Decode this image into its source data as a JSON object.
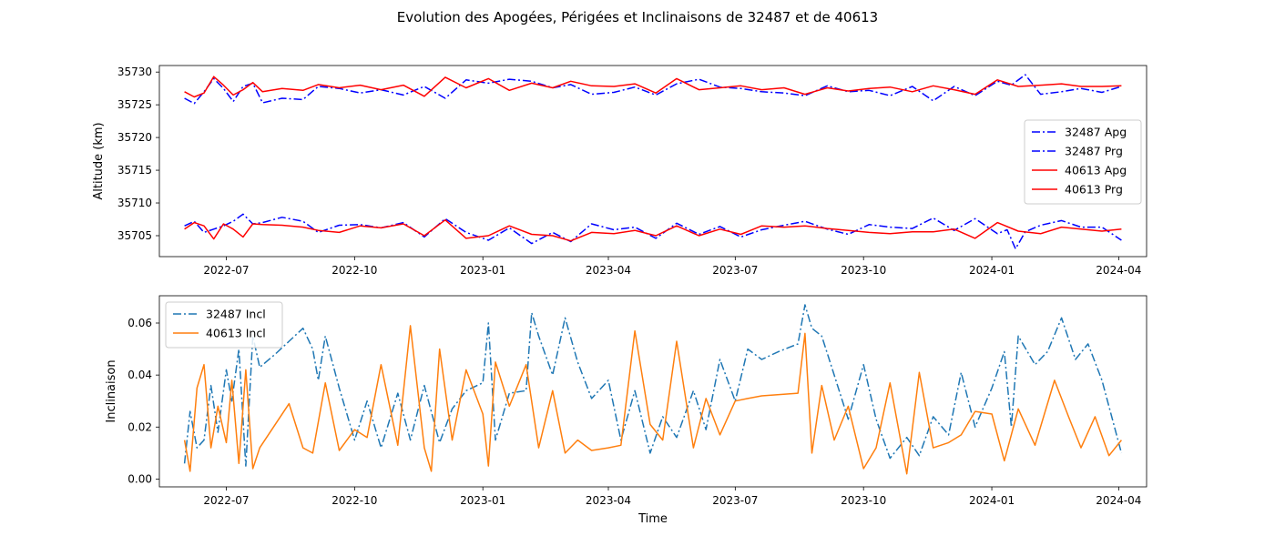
{
  "figure": {
    "title": "Evolution des Apogées, Périgées et Inclinaisons de 32487 et de 40613"
  },
  "chart_data": [
    {
      "type": "line",
      "title": "",
      "xlabel": "",
      "ylabel": "Altitude (km)",
      "xlim": [
        "2022-05-14",
        "2024-04-21"
      ],
      "ylim": [
        35701.8,
        35731.0
      ],
      "x_ticks": [
        "2022-07",
        "2022-10",
        "2023-01",
        "2023-04",
        "2023-07",
        "2023-10",
        "2024-01",
        "2024-04"
      ],
      "y_ticks": [
        35705,
        35710,
        35715,
        35720,
        35725,
        35730
      ],
      "legend": {
        "position": "center-right",
        "entries": [
          {
            "label": "32487 Apg",
            "color": "#0000ff",
            "dash": "dashdot"
          },
          {
            "label": "32487 Prg",
            "color": "#0000ff",
            "dash": "dashdot"
          },
          {
            "label": "40613 Apg",
            "color": "#ff0000",
            "dash": "solid"
          },
          {
            "label": "40613 Prg",
            "color": "#ff0000",
            "dash": "solid"
          }
        ]
      },
      "series": [
        {
          "name": "32487 Apg",
          "color": "#0000ff",
          "dash": "dashdot",
          "x": [
            "2022-06-01",
            "2022-06-08",
            "2022-06-15",
            "2022-06-22",
            "2022-06-29",
            "2022-07-06",
            "2022-07-13",
            "2022-07-20",
            "2022-07-27",
            "2022-08-10",
            "2022-08-25",
            "2022-09-05",
            "2022-09-20",
            "2022-10-05",
            "2022-10-20",
            "2022-11-05",
            "2022-11-20",
            "2022-12-05",
            "2022-12-20",
            "2023-01-05",
            "2023-01-20",
            "2023-02-05",
            "2023-02-20",
            "2023-03-05",
            "2023-03-20",
            "2023-04-05",
            "2023-04-20",
            "2023-05-05",
            "2023-05-20",
            "2023-06-05",
            "2023-06-20",
            "2023-07-05",
            "2023-07-20",
            "2023-08-05",
            "2023-08-20",
            "2023-09-05",
            "2023-09-20",
            "2023-10-05",
            "2023-10-20",
            "2023-11-05",
            "2023-11-20",
            "2023-12-05",
            "2023-12-20",
            "2024-01-05",
            "2024-01-15",
            "2024-01-25",
            "2024-02-05",
            "2024-02-20",
            "2024-03-05",
            "2024-03-20",
            "2024-04-03"
          ],
          "values": [
            35726.0,
            35725.2,
            35727.0,
            35729.0,
            35727.5,
            35725.5,
            35727.8,
            35728.3,
            35725.3,
            35726.0,
            35725.8,
            35727.8,
            35727.5,
            35726.8,
            35727.3,
            35726.5,
            35727.8,
            35726.0,
            35728.8,
            35728.3,
            35728.9,
            35728.6,
            35727.6,
            35728.1,
            35726.6,
            35726.9,
            35727.7,
            35726.5,
            35728.2,
            35728.9,
            35727.7,
            35727.5,
            35727.0,
            35726.8,
            35726.4,
            35727.9,
            35727.0,
            35727.2,
            35726.4,
            35727.8,
            35725.6,
            35727.8,
            35726.4,
            35728.6,
            35728.0,
            35729.6,
            35726.6,
            35727.0,
            35727.5,
            35726.9,
            35727.8
          ]
        },
        {
          "name": "32487 Prg",
          "color": "#0000ff",
          "dash": "dashdot",
          "x": [
            "2022-06-01",
            "2022-06-08",
            "2022-06-15",
            "2022-06-22",
            "2022-06-29",
            "2022-07-06",
            "2022-07-13",
            "2022-07-20",
            "2022-07-27",
            "2022-08-10",
            "2022-08-25",
            "2022-09-05",
            "2022-09-20",
            "2022-10-05",
            "2022-10-20",
            "2022-11-05",
            "2022-11-20",
            "2022-12-05",
            "2022-12-20",
            "2023-01-05",
            "2023-01-20",
            "2023-02-05",
            "2023-02-20",
            "2023-03-05",
            "2023-03-20",
            "2023-04-05",
            "2023-04-20",
            "2023-05-05",
            "2023-05-20",
            "2023-06-05",
            "2023-06-20",
            "2023-07-05",
            "2023-07-20",
            "2023-08-05",
            "2023-08-20",
            "2023-09-05",
            "2023-09-20",
            "2023-10-05",
            "2023-10-20",
            "2023-11-05",
            "2023-11-20",
            "2023-12-05",
            "2023-12-20",
            "2024-01-05",
            "2024-01-12",
            "2024-01-18",
            "2024-01-25",
            "2024-02-05",
            "2024-02-20",
            "2024-03-05",
            "2024-03-20",
            "2024-04-03"
          ],
          "values": [
            35706.5,
            35707.2,
            35705.5,
            35706.0,
            35706.5,
            35707.2,
            35708.3,
            35706.8,
            35707.0,
            35707.8,
            35707.2,
            35705.5,
            35706.6,
            35706.7,
            35706.2,
            35707.0,
            35704.8,
            35707.6,
            35705.5,
            35704.3,
            35706.2,
            35703.8,
            35705.5,
            35704.1,
            35706.8,
            35705.9,
            35706.3,
            35704.6,
            35706.9,
            35705.2,
            35706.4,
            35704.8,
            35705.9,
            35706.6,
            35707.2,
            35706.0,
            35705.2,
            35706.7,
            35706.3,
            35706.1,
            35707.7,
            35705.8,
            35707.6,
            35705.3,
            35705.9,
            35703.0,
            35705.6,
            35706.6,
            35707.3,
            35706.3,
            35706.3,
            35704.3
          ]
        },
        {
          "name": "40613 Apg",
          "color": "#ff0000",
          "dash": "solid",
          "x": [
            "2022-06-01",
            "2022-06-08",
            "2022-06-15",
            "2022-06-22",
            "2022-06-29",
            "2022-07-06",
            "2022-07-13",
            "2022-07-20",
            "2022-07-27",
            "2022-08-10",
            "2022-08-25",
            "2022-09-05",
            "2022-09-20",
            "2022-10-05",
            "2022-10-20",
            "2022-11-05",
            "2022-11-20",
            "2022-12-05",
            "2022-12-20",
            "2023-01-05",
            "2023-01-20",
            "2023-02-05",
            "2023-02-20",
            "2023-03-05",
            "2023-03-20",
            "2023-04-05",
            "2023-04-20",
            "2023-05-05",
            "2023-05-20",
            "2023-06-05",
            "2023-06-20",
            "2023-07-05",
            "2023-07-20",
            "2023-08-05",
            "2023-08-20",
            "2023-09-05",
            "2023-09-20",
            "2023-10-05",
            "2023-10-20",
            "2023-11-05",
            "2023-11-20",
            "2023-12-05",
            "2023-12-20",
            "2024-01-05",
            "2024-01-20",
            "2024-02-05",
            "2024-02-20",
            "2024-03-05",
            "2024-03-20",
            "2024-04-03"
          ],
          "values": [
            35727.0,
            35726.2,
            35726.8,
            35729.3,
            35728.0,
            35726.5,
            35727.3,
            35728.4,
            35727.0,
            35727.5,
            35727.2,
            35728.1,
            35727.6,
            35728.0,
            35727.3,
            35728.0,
            35726.3,
            35729.2,
            35727.6,
            35729.0,
            35727.2,
            35728.3,
            35727.6,
            35728.6,
            35727.9,
            35727.8,
            35728.2,
            35726.8,
            35729.0,
            35727.3,
            35727.6,
            35727.9,
            35727.3,
            35727.6,
            35726.6,
            35727.6,
            35727.1,
            35727.5,
            35727.7,
            35727.0,
            35727.9,
            35727.3,
            35726.6,
            35728.8,
            35727.8,
            35728.0,
            35728.2,
            35727.8,
            35727.8,
            35727.9
          ]
        },
        {
          "name": "40613 Prg",
          "color": "#ff0000",
          "dash": "solid",
          "x": [
            "2022-06-01",
            "2022-06-08",
            "2022-06-15",
            "2022-06-22",
            "2022-06-29",
            "2022-07-06",
            "2022-07-13",
            "2022-07-20",
            "2022-07-27",
            "2022-08-10",
            "2022-08-25",
            "2022-09-05",
            "2022-09-20",
            "2022-10-05",
            "2022-10-20",
            "2022-11-05",
            "2022-11-20",
            "2022-12-05",
            "2022-12-20",
            "2023-01-05",
            "2023-01-20",
            "2023-02-05",
            "2023-02-20",
            "2023-03-05",
            "2023-03-20",
            "2023-04-05",
            "2023-04-20",
            "2023-05-05",
            "2023-05-20",
            "2023-06-05",
            "2023-06-20",
            "2023-07-05",
            "2023-07-20",
            "2023-08-05",
            "2023-08-20",
            "2023-09-05",
            "2023-09-20",
            "2023-10-05",
            "2023-10-20",
            "2023-11-05",
            "2023-11-20",
            "2023-12-05",
            "2023-12-20",
            "2024-01-05",
            "2024-01-20",
            "2024-02-05",
            "2024-02-20",
            "2024-03-05",
            "2024-03-20",
            "2024-04-03"
          ],
          "values": [
            35706.0,
            35707.0,
            35706.5,
            35704.5,
            35706.8,
            35706.0,
            35704.8,
            35706.8,
            35706.7,
            35706.6,
            35706.3,
            35705.8,
            35705.5,
            35706.5,
            35706.2,
            35706.8,
            35705.0,
            35707.4,
            35704.6,
            35705.0,
            35706.5,
            35705.2,
            35705.0,
            35704.2,
            35705.5,
            35705.3,
            35705.8,
            35705.0,
            35706.5,
            35705.0,
            35706.0,
            35705.2,
            35706.5,
            35706.3,
            35706.5,
            35706.1,
            35705.8,
            35705.5,
            35705.3,
            35705.6,
            35705.6,
            35706.0,
            35704.6,
            35707.0,
            35705.7,
            35705.3,
            35706.3,
            35706.0,
            35705.7,
            35706.0
          ]
        }
      ]
    },
    {
      "type": "line",
      "title": "",
      "xlabel": "Time",
      "ylabel": "Inclinaison",
      "xlim": [
        "2022-05-14",
        "2024-04-21"
      ],
      "ylim": [
        -0.003,
        0.0705
      ],
      "x_ticks": [
        "2022-07",
        "2022-10",
        "2023-01",
        "2023-04",
        "2023-07",
        "2023-10",
        "2024-01",
        "2024-04"
      ],
      "y_ticks": [
        "0.00",
        "0.02",
        "0.04",
        "0.06"
      ],
      "legend": {
        "position": "top-left",
        "entries": [
          {
            "label": "32487 Incl",
            "color": "#1f77b4",
            "dash": "dashdot"
          },
          {
            "label": "40613 Incl",
            "color": "#ff7f0e",
            "dash": "solid"
          }
        ]
      },
      "series": [
        {
          "name": "32487 Incl",
          "color": "#1f77b4",
          "dash": "dashdot",
          "x": [
            "2022-06-01",
            "2022-06-05",
            "2022-06-10",
            "2022-06-15",
            "2022-06-20",
            "2022-06-25",
            "2022-07-01",
            "2022-07-05",
            "2022-07-10",
            "2022-07-15",
            "2022-07-20",
            "2022-07-25",
            "2022-08-05",
            "2022-08-15",
            "2022-08-25",
            "2022-09-01",
            "2022-09-05",
            "2022-09-10",
            "2022-09-20",
            "2022-10-01",
            "2022-10-10",
            "2022-10-20",
            "2022-11-01",
            "2022-11-10",
            "2022-11-20",
            "2022-12-01",
            "2022-12-10",
            "2022-12-20",
            "2023-01-01",
            "2023-01-05",
            "2023-01-10",
            "2023-01-20",
            "2023-02-01",
            "2023-02-05",
            "2023-02-10",
            "2023-02-20",
            "2023-03-01",
            "2023-03-10",
            "2023-03-20",
            "2023-04-01",
            "2023-04-10",
            "2023-04-20",
            "2023-05-01",
            "2023-05-10",
            "2023-05-20",
            "2023-06-01",
            "2023-06-10",
            "2023-06-20",
            "2023-07-01",
            "2023-07-10",
            "2023-07-20",
            "2023-08-01",
            "2023-08-15",
            "2023-08-20",
            "2023-08-25",
            "2023-09-01",
            "2023-09-10",
            "2023-09-20",
            "2023-10-01",
            "2023-10-10",
            "2023-10-20",
            "2023-11-01",
            "2023-11-10",
            "2023-11-20",
            "2023-12-01",
            "2023-12-10",
            "2023-12-20",
            "2024-01-01",
            "2024-01-10",
            "2024-01-15",
            "2024-01-20",
            "2024-02-01",
            "2024-02-10",
            "2024-02-20",
            "2024-03-01",
            "2024-03-10",
            "2024-03-20",
            "2024-04-03"
          ],
          "values": [
            0.006,
            0.026,
            0.012,
            0.015,
            0.036,
            0.018,
            0.042,
            0.03,
            0.05,
            0.005,
            0.055,
            0.043,
            0.048,
            0.053,
            0.058,
            0.05,
            0.038,
            0.055,
            0.035,
            0.015,
            0.03,
            0.012,
            0.033,
            0.015,
            0.036,
            0.014,
            0.027,
            0.034,
            0.037,
            0.06,
            0.015,
            0.033,
            0.034,
            0.064,
            0.055,
            0.04,
            0.062,
            0.045,
            0.031,
            0.038,
            0.015,
            0.034,
            0.01,
            0.024,
            0.016,
            0.034,
            0.019,
            0.046,
            0.03,
            0.05,
            0.046,
            0.049,
            0.052,
            0.067,
            0.058,
            0.055,
            0.04,
            0.023,
            0.044,
            0.023,
            0.008,
            0.016,
            0.009,
            0.024,
            0.017,
            0.041,
            0.02,
            0.035,
            0.049,
            0.02,
            0.055,
            0.044,
            0.049,
            0.062,
            0.046,
            0.052,
            0.038,
            0.01
          ]
        },
        {
          "name": "40613 Incl",
          "color": "#ff7f0e",
          "dash": "solid",
          "x": [
            "2022-06-01",
            "2022-06-05",
            "2022-06-10",
            "2022-06-15",
            "2022-06-20",
            "2022-06-25",
            "2022-07-01",
            "2022-07-05",
            "2022-07-10",
            "2022-07-15",
            "2022-07-20",
            "2022-07-25",
            "2022-08-15",
            "2022-08-25",
            "2022-09-01",
            "2022-09-10",
            "2022-09-20",
            "2022-10-01",
            "2022-10-10",
            "2022-10-20",
            "2022-11-01",
            "2022-11-10",
            "2022-11-20",
            "2022-11-25",
            "2022-12-01",
            "2022-12-10",
            "2022-12-20",
            "2023-01-01",
            "2023-01-05",
            "2023-01-10",
            "2023-01-20",
            "2023-02-01",
            "2023-02-10",
            "2023-02-20",
            "2023-03-01",
            "2023-03-10",
            "2023-03-20",
            "2023-04-01",
            "2023-04-10",
            "2023-04-20",
            "2023-05-01",
            "2023-05-10",
            "2023-05-20",
            "2023-06-01",
            "2023-06-10",
            "2023-06-20",
            "2023-07-01",
            "2023-07-10",
            "2023-07-20",
            "2023-08-15",
            "2023-08-20",
            "2023-08-25",
            "2023-09-01",
            "2023-09-10",
            "2023-09-20",
            "2023-10-01",
            "2023-10-10",
            "2023-10-20",
            "2023-11-01",
            "2023-11-10",
            "2023-11-20",
            "2023-12-01",
            "2023-12-10",
            "2023-12-20",
            "2024-01-01",
            "2024-01-10",
            "2024-01-20",
            "2024-02-01",
            "2024-02-15",
            "2024-02-25",
            "2024-03-05",
            "2024-03-15",
            "2024-03-25",
            "2024-04-03"
          ],
          "values": [
            0.015,
            0.003,
            0.035,
            0.044,
            0.012,
            0.028,
            0.014,
            0.038,
            0.006,
            0.042,
            0.004,
            0.012,
            0.029,
            0.012,
            0.01,
            0.037,
            0.011,
            0.019,
            0.016,
            0.044,
            0.013,
            0.059,
            0.012,
            0.003,
            0.05,
            0.015,
            0.042,
            0.025,
            0.005,
            0.045,
            0.028,
            0.044,
            0.012,
            0.034,
            0.01,
            0.015,
            0.011,
            0.012,
            0.013,
            0.057,
            0.021,
            0.015,
            0.053,
            0.012,
            0.031,
            0.017,
            0.03,
            0.031,
            0.032,
            0.033,
            0.056,
            0.01,
            0.036,
            0.015,
            0.028,
            0.004,
            0.012,
            0.037,
            0.002,
            0.041,
            0.012,
            0.014,
            0.017,
            0.026,
            0.025,
            0.007,
            0.027,
            0.013,
            0.038,
            0.024,
            0.012,
            0.024,
            0.009,
            0.015
          ]
        }
      ]
    }
  ]
}
